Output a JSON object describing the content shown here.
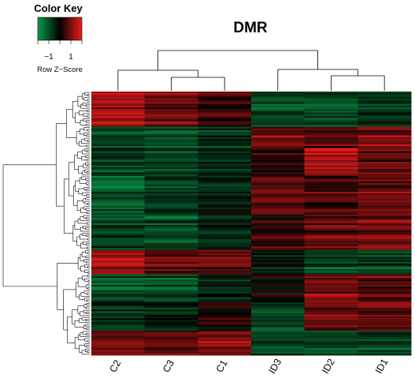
{
  "chart_data": {
    "type": "heatmap",
    "title": "DMR",
    "columns": [
      "C2",
      "C3",
      "C1",
      "ID3",
      "ID2",
      "ID1"
    ],
    "row_count": 150,
    "color_key": {
      "title": "Color Key",
      "label": "Row Z−Score",
      "tick_labels": [
        "−1",
        "1"
      ],
      "tick_values": [
        -1,
        1
      ],
      "range": [
        -2,
        2
      ],
      "low_color": "#0a9a4a",
      "mid_color": "#000000",
      "high_color": "#ee1c1c"
    },
    "row_blocks": [
      {
        "rows": 20,
        "values": [
          1.3,
          0.9,
          0.4,
          -0.9,
          -1.0,
          -0.7
        ]
      },
      {
        "rows": 12,
        "values": [
          -0.8,
          -0.9,
          -0.6,
          0.9,
          0.7,
          1.0
        ]
      },
      {
        "rows": 16,
        "values": [
          -0.7,
          -0.8,
          -0.5,
          0.3,
          1.4,
          0.8
        ]
      },
      {
        "rows": 22,
        "values": [
          -1.1,
          -0.6,
          -0.3,
          0.9,
          0.6,
          0.9
        ]
      },
      {
        "rows": 20,
        "values": [
          -0.8,
          -0.9,
          -0.5,
          0.4,
          0.8,
          1.0
        ]
      },
      {
        "rows": 14,
        "values": [
          1.2,
          0.7,
          0.8,
          -0.5,
          -1.0,
          -0.8
        ]
      },
      {
        "rows": 16,
        "values": [
          -0.9,
          -0.8,
          -0.3,
          0.2,
          1.1,
          0.8
        ]
      },
      {
        "rows": 16,
        "values": [
          -0.7,
          -0.6,
          0.2,
          -0.9,
          0.8,
          0.7
        ]
      },
      {
        "rows": 14,
        "values": [
          0.9,
          0.7,
          1.0,
          -0.9,
          -0.9,
          -0.8
        ]
      }
    ]
  }
}
